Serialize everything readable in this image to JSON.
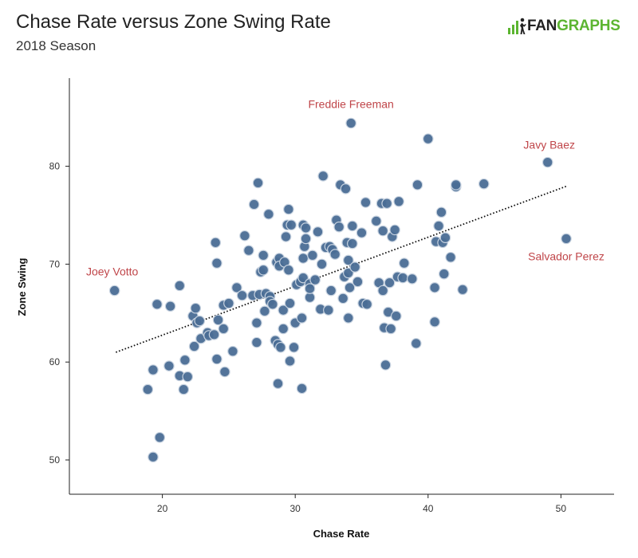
{
  "header": {
    "title": "Chase Rate versus Zone Swing Rate",
    "subtitle": "2018 Season",
    "logo": {
      "prefix": "FAN",
      "suffix": "GRAPHS",
      "prefix_color": "#222222",
      "suffix_color": "#5cb531"
    }
  },
  "chart_data": {
    "type": "scatter",
    "title": "Chase Rate versus Zone Swing Rate",
    "subtitle": "2018 Season",
    "xlabel": "Chase Rate",
    "ylabel": "Zone Swing",
    "xlim": [
      13,
      54
    ],
    "ylim": [
      46.5,
      89
    ],
    "x_ticks": [
      20,
      30,
      40,
      50
    ],
    "y_ticks": [
      50,
      60,
      70,
      80
    ],
    "grid": false,
    "point_color": "#4a6d95",
    "point_stroke": "#c8d3e0",
    "annotation_color": "#c0464a",
    "trendline": {
      "style": "dotted",
      "x": [
        16.5,
        50.5
      ],
      "y": [
        61.0,
        78.0
      ]
    },
    "annotations": [
      {
        "label": "Freddie Freeman",
        "x": 34.2,
        "y": 84.4
      },
      {
        "label": "Javy Baez",
        "x": 49.0,
        "y": 80.4
      },
      {
        "label": "Salvador Perez",
        "x": 50.4,
        "y": 72.6
      },
      {
        "label": "Joey Votto",
        "x": 16.4,
        "y": 67.3
      }
    ],
    "points": [
      [
        16.4,
        67.3
      ],
      [
        18.9,
        57.2
      ],
      [
        19.3,
        50.3
      ],
      [
        19.3,
        59.2
      ],
      [
        19.6,
        65.9
      ],
      [
        19.8,
        52.3
      ],
      [
        20.5,
        59.6
      ],
      [
        20.6,
        65.7
      ],
      [
        21.3,
        67.8
      ],
      [
        21.3,
        58.6
      ],
      [
        21.6,
        57.2
      ],
      [
        21.7,
        60.2
      ],
      [
        21.9,
        58.5
      ],
      [
        22.3,
        64.7
      ],
      [
        22.4,
        61.6
      ],
      [
        22.5,
        65.5
      ],
      [
        22.6,
        64.0
      ],
      [
        22.8,
        64.2
      ],
      [
        22.9,
        62.4
      ],
      [
        23.4,
        63.0
      ],
      [
        23.5,
        62.7
      ],
      [
        23.9,
        62.8
      ],
      [
        24.0,
        72.2
      ],
      [
        24.1,
        60.3
      ],
      [
        24.1,
        70.1
      ],
      [
        24.2,
        64.3
      ],
      [
        24.6,
        65.8
      ],
      [
        24.6,
        63.4
      ],
      [
        24.7,
        59.0
      ],
      [
        25.0,
        66.0
      ],
      [
        25.3,
        61.1
      ],
      [
        25.6,
        67.6
      ],
      [
        26.0,
        66.8
      ],
      [
        26.2,
        72.9
      ],
      [
        26.5,
        71.4
      ],
      [
        26.8,
        66.8
      ],
      [
        26.9,
        76.1
      ],
      [
        27.1,
        64.0
      ],
      [
        27.1,
        62.0
      ],
      [
        27.2,
        78.3
      ],
      [
        27.3,
        66.9
      ],
      [
        27.4,
        69.2
      ],
      [
        27.6,
        69.4
      ],
      [
        27.6,
        70.9
      ],
      [
        27.7,
        65.2
      ],
      [
        27.8,
        67.0
      ],
      [
        28.0,
        75.1
      ],
      [
        28.1,
        66.7
      ],
      [
        28.1,
        66.2
      ],
      [
        28.3,
        65.9
      ],
      [
        28.5,
        62.2
      ],
      [
        28.6,
        70.2
      ],
      [
        28.7,
        61.8
      ],
      [
        28.7,
        57.8
      ],
      [
        28.8,
        70.6
      ],
      [
        28.8,
        69.8
      ],
      [
        28.9,
        61.5
      ],
      [
        29.1,
        65.3
      ],
      [
        29.1,
        63.4
      ],
      [
        29.2,
        70.2
      ],
      [
        29.3,
        72.8
      ],
      [
        29.4,
        74.0
      ],
      [
        29.5,
        75.6
      ],
      [
        29.5,
        69.4
      ],
      [
        29.6,
        66.0
      ],
      [
        29.6,
        60.1
      ],
      [
        29.7,
        74.0
      ],
      [
        29.9,
        61.5
      ],
      [
        30.0,
        64.0
      ],
      [
        30.1,
        67.9
      ],
      [
        30.4,
        68.2
      ],
      [
        30.5,
        64.5
      ],
      [
        30.5,
        57.3
      ],
      [
        30.6,
        68.6
      ],
      [
        30.6,
        70.6
      ],
      [
        30.6,
        74.0
      ],
      [
        30.7,
        71.8
      ],
      [
        30.8,
        73.7
      ],
      [
        30.8,
        72.6
      ],
      [
        31.1,
        66.6
      ],
      [
        31.1,
        68.0
      ],
      [
        31.1,
        67.5
      ],
      [
        31.3,
        70.9
      ],
      [
        31.5,
        68.4
      ],
      [
        31.7,
        73.3
      ],
      [
        31.9,
        65.4
      ],
      [
        32.0,
        70.0
      ],
      [
        32.1,
        79.0
      ],
      [
        32.3,
        71.7
      ],
      [
        32.5,
        65.3
      ],
      [
        32.6,
        71.8
      ],
      [
        32.7,
        67.3
      ],
      [
        32.8,
        71.5
      ],
      [
        33.0,
        71.0
      ],
      [
        33.1,
        74.5
      ],
      [
        33.3,
        73.8
      ],
      [
        33.4,
        78.1
      ],
      [
        33.6,
        66.5
      ],
      [
        33.7,
        68.7
      ],
      [
        33.8,
        77.7
      ],
      [
        33.9,
        72.2
      ],
      [
        34.0,
        70.4
      ],
      [
        34.0,
        69.1
      ],
      [
        34.0,
        64.5
      ],
      [
        34.1,
        67.6
      ],
      [
        34.3,
        73.9
      ],
      [
        34.3,
        72.1
      ],
      [
        34.2,
        84.4
      ],
      [
        34.5,
        69.7
      ],
      [
        34.7,
        68.2
      ],
      [
        35.0,
        73.2
      ],
      [
        35.1,
        66.0
      ],
      [
        35.3,
        76.3
      ],
      [
        35.4,
        65.9
      ],
      [
        36.1,
        74.4
      ],
      [
        36.3,
        68.1
      ],
      [
        36.5,
        76.2
      ],
      [
        36.6,
        67.3
      ],
      [
        36.6,
        73.4
      ],
      [
        36.7,
        63.5
      ],
      [
        36.8,
        59.7
      ],
      [
        36.9,
        76.2
      ],
      [
        37.0,
        65.1
      ],
      [
        37.1,
        68.1
      ],
      [
        37.2,
        63.4
      ],
      [
        37.3,
        72.8
      ],
      [
        37.5,
        73.5
      ],
      [
        37.6,
        64.7
      ],
      [
        37.7,
        68.7
      ],
      [
        37.8,
        76.4
      ],
      [
        38.1,
        68.6
      ],
      [
        38.2,
        70.1
      ],
      [
        38.8,
        68.5
      ],
      [
        39.1,
        61.9
      ],
      [
        39.2,
        78.1
      ],
      [
        40.0,
        82.8
      ],
      [
        40.5,
        64.1
      ],
      [
        40.5,
        67.6
      ],
      [
        40.6,
        72.3
      ],
      [
        40.8,
        73.9
      ],
      [
        41.0,
        75.3
      ],
      [
        41.1,
        72.2
      ],
      [
        41.2,
        69.0
      ],
      [
        41.3,
        72.7
      ],
      [
        41.7,
        70.7
      ],
      [
        42.1,
        77.9
      ],
      [
        42.1,
        78.1
      ],
      [
        42.6,
        67.4
      ],
      [
        44.2,
        78.2
      ],
      [
        49.0,
        80.4
      ],
      [
        50.4,
        72.6
      ]
    ]
  }
}
